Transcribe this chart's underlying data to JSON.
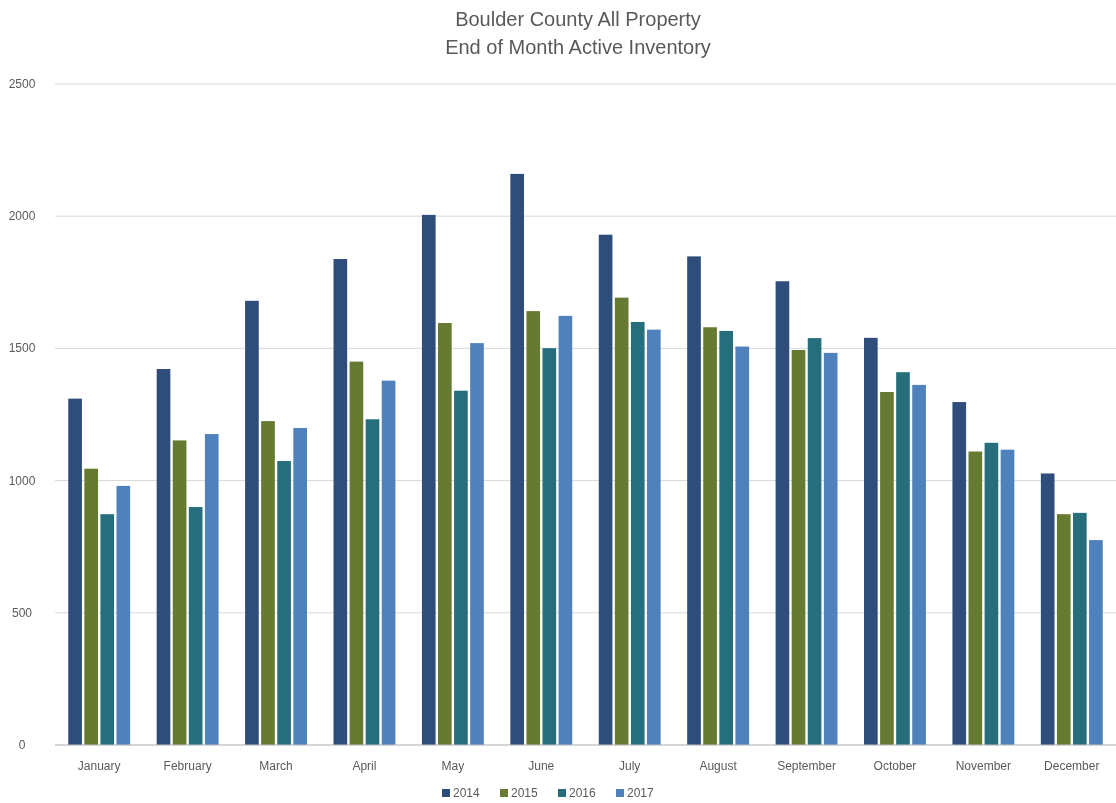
{
  "chart_data": {
    "type": "bar",
    "title": "Boulder County All Property\nEnd of Month Active Inventory",
    "categories": [
      "January",
      "February",
      "March",
      "April",
      "May",
      "June",
      "July",
      "August",
      "September",
      "October",
      "November",
      "December"
    ],
    "series": [
      {
        "name": "2014",
        "color": "#2e4d7b",
        "values": [
          1310,
          1422,
          1680,
          1838,
          2005,
          2160,
          1930,
          1848,
          1754,
          1540,
          1297,
          1027
        ]
      },
      {
        "name": "2015",
        "color": "#667a32",
        "values": [
          1045,
          1152,
          1225,
          1450,
          1596,
          1641,
          1692,
          1580,
          1494,
          1335,
          1110,
          873
        ]
      },
      {
        "name": "2016",
        "color": "#276e7c",
        "values": [
          873,
          900,
          1074,
          1232,
          1340,
          1501,
          1600,
          1566,
          1539,
          1410,
          1143,
          878
        ]
      },
      {
        "name": "2017",
        "color": "#4f81bd",
        "values": [
          980,
          1176,
          1199,
          1378,
          1520,
          1623,
          1571,
          1507,
          1483,
          1362,
          1117,
          775
        ]
      }
    ],
    "ylim": [
      0,
      2500
    ],
    "yticks": [
      0,
      500,
      1000,
      1500,
      2000,
      2500
    ],
    "grid": "y",
    "legend": "bottom"
  }
}
